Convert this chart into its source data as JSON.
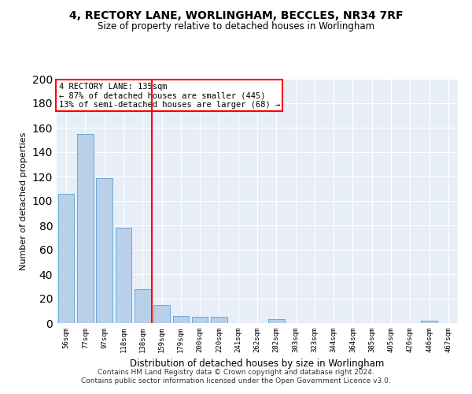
{
  "title_line1": "4, RECTORY LANE, WORLINGHAM, BECCLES, NR34 7RF",
  "title_line2": "Size of property relative to detached houses in Worlingham",
  "xlabel": "Distribution of detached houses by size in Worlingham",
  "ylabel": "Number of detached properties",
  "footer_line1": "Contains HM Land Registry data © Crown copyright and database right 2024.",
  "footer_line2": "Contains public sector information licensed under the Open Government Licence v3.0.",
  "bar_labels": [
    "56sqm",
    "77sqm",
    "97sqm",
    "118sqm",
    "138sqm",
    "159sqm",
    "179sqm",
    "200sqm",
    "220sqm",
    "241sqm",
    "262sqm",
    "282sqm",
    "303sqm",
    "323sqm",
    "344sqm",
    "364sqm",
    "385sqm",
    "405sqm",
    "426sqm",
    "446sqm",
    "467sqm"
  ],
  "bar_values": [
    106,
    155,
    119,
    78,
    28,
    15,
    6,
    5,
    5,
    0,
    0,
    3,
    0,
    0,
    0,
    0,
    0,
    0,
    0,
    2,
    0
  ],
  "bar_color": "#b8d0ea",
  "bar_edge_color": "#6aaad4",
  "background_color": "#e8eef8",
  "grid_color": "#ffffff",
  "vline_x": 4.5,
  "vline_color": "red",
  "annotation_line1": "4 RECTORY LANE: 135sqm",
  "annotation_line2": "← 87% of detached houses are smaller (445)",
  "annotation_line3": "13% of semi-detached houses are larger (68) →",
  "annotation_box_color": "white",
  "annotation_box_edge": "red",
  "ylim": [
    0,
    200
  ],
  "yticks": [
    0,
    20,
    40,
    60,
    80,
    100,
    120,
    140,
    160,
    180,
    200
  ]
}
